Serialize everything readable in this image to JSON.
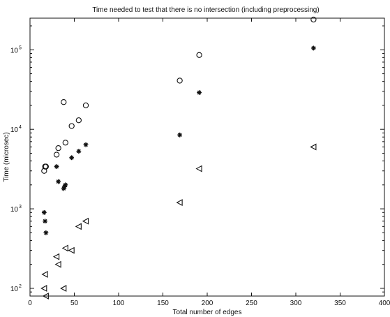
{
  "chart_data": {
    "type": "scatter",
    "title": "Time needed to test that there is no intersection (including preprocessing)",
    "xlabel": "Total number of edges",
    "ylabel": "Time (microsec)",
    "xlim": [
      0,
      400
    ],
    "ylim": [
      80,
      250000
    ],
    "yscale": "log",
    "grid": false,
    "x_ticks": [
      0,
      50,
      100,
      150,
      200,
      250,
      300,
      350,
      400
    ],
    "y_ticks": [
      {
        "value": 100,
        "label": "10",
        "exp": "2"
      },
      {
        "value": 1000,
        "label": "10",
        "exp": "3"
      },
      {
        "value": 10000,
        "label": "10",
        "exp": "4"
      },
      {
        "value": 100000,
        "label": "10",
        "exp": "5"
      }
    ],
    "series": [
      {
        "marker": "circle",
        "points": [
          [
            16,
            3000
          ],
          [
            17,
            3400
          ],
          [
            18,
            3400
          ],
          [
            30,
            4800
          ],
          [
            32,
            5800
          ],
          [
            38,
            22000
          ],
          [
            40,
            6800
          ],
          [
            47,
            11000
          ],
          [
            55,
            13000
          ],
          [
            63,
            20000
          ],
          [
            169,
            41000
          ],
          [
            191,
            86000
          ],
          [
            320,
            240000
          ]
        ]
      },
      {
        "marker": "star",
        "points": [
          [
            16,
            900
          ],
          [
            17,
            700
          ],
          [
            18,
            500
          ],
          [
            30,
            3400
          ],
          [
            32,
            2200
          ],
          [
            38,
            1800
          ],
          [
            40,
            2000
          ],
          [
            39,
            1900
          ],
          [
            47,
            4400
          ],
          [
            55,
            5300
          ],
          [
            63,
            6400
          ],
          [
            169,
            8500
          ],
          [
            191,
            29000
          ],
          [
            320,
            105000
          ]
        ]
      },
      {
        "marker": "triangle-left",
        "points": [
          [
            16,
            100
          ],
          [
            17,
            150
          ],
          [
            18,
            80
          ],
          [
            30,
            250
          ],
          [
            32,
            200
          ],
          [
            38,
            100
          ],
          [
            40,
            320
          ],
          [
            47,
            300
          ],
          [
            55,
            600
          ],
          [
            63,
            700
          ],
          [
            169,
            1200
          ],
          [
            191,
            3200
          ],
          [
            320,
            6000
          ]
        ]
      }
    ]
  }
}
